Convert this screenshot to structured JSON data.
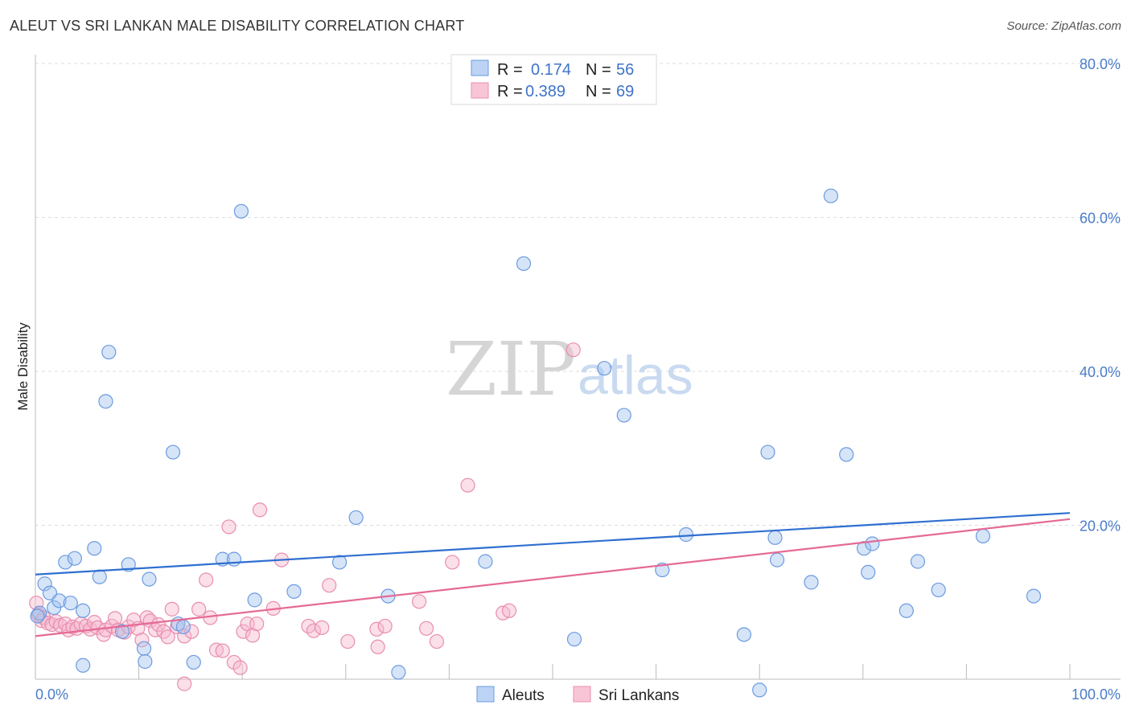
{
  "header": {
    "title": "ALEUT VS SRI LANKAN MALE DISABILITY CORRELATION CHART",
    "source": "Source: ZipAtlas.com"
  },
  "watermark": {
    "zip": "ZIP",
    "atlas": "atlas"
  },
  "legend": {
    "row1": {
      "r_label": "R =",
      "r_value": "0.174",
      "n_label": "N =",
      "n_value": "56"
    },
    "row2": {
      "r_label": "R =",
      "r_value": "0.389",
      "n_label": "N =",
      "n_value": "69"
    }
  },
  "bottom_legend": {
    "a": "Aleuts",
    "b": "Sri Lankans"
  },
  "colors": {
    "aleut": "#4a86d8",
    "srilankan": "#e87aa0",
    "tick": "#4a7cc9"
  },
  "chart_data": {
    "type": "scatter",
    "title": "ALEUT VS SRI LANKAN MALE DISABILITY CORRELATION CHART",
    "ylabel": "Male Disability",
    "xlabel": "",
    "xlim": [
      0,
      100
    ],
    "ylim": [
      0,
      80
    ],
    "x_tick_labels": [
      "0.0%",
      "100.0%"
    ],
    "y_ticks": [
      20,
      40,
      60,
      80
    ],
    "y_tick_labels": [
      "20.0%",
      "40.0%",
      "60.0%",
      "80.0%"
    ],
    "grid": true,
    "legend_position": "top-center",
    "series": [
      {
        "name": "Aleuts",
        "R": 0.174,
        "N": 56,
        "trend": {
          "x": [
            0,
            100
          ],
          "y": [
            13.6,
            21.6
          ]
        },
        "points": [
          [
            0.4,
            8.6
          ],
          [
            0.9,
            12.4
          ],
          [
            1.4,
            11.2
          ],
          [
            1.8,
            9.3
          ],
          [
            2.3,
            10.2
          ],
          [
            2.9,
            15.2
          ],
          [
            3.4,
            9.9
          ],
          [
            3.8,
            15.7
          ],
          [
            4.6,
            8.9
          ],
          [
            4.6,
            1.8
          ],
          [
            5.7,
            17.0
          ],
          [
            6.2,
            13.3
          ],
          [
            7.1,
            42.5
          ],
          [
            6.8,
            36.1
          ],
          [
            8.4,
            6.2
          ],
          [
            9.0,
            14.9
          ],
          [
            10.5,
            4.0
          ],
          [
            10.6,
            2.3
          ],
          [
            11.0,
            13.0
          ],
          [
            13.3,
            29.5
          ],
          [
            13.8,
            7.2
          ],
          [
            14.3,
            6.8
          ],
          [
            15.3,
            2.2
          ],
          [
            18.1,
            15.6
          ],
          [
            19.2,
            15.6
          ],
          [
            19.9,
            60.8
          ],
          [
            21.2,
            10.3
          ],
          [
            25.0,
            11.4
          ],
          [
            29.4,
            15.2
          ],
          [
            31.0,
            21.0
          ],
          [
            34.1,
            10.8
          ],
          [
            35.1,
            0.9
          ],
          [
            43.5,
            15.3
          ],
          [
            47.2,
            54.0
          ],
          [
            52.1,
            5.2
          ],
          [
            55.0,
            40.4
          ],
          [
            56.9,
            34.3
          ],
          [
            60.6,
            14.2
          ],
          [
            62.9,
            18.8
          ],
          [
            68.5,
            5.8
          ],
          [
            70.0,
            -1.4
          ],
          [
            70.8,
            29.5
          ],
          [
            71.5,
            18.4
          ],
          [
            71.7,
            15.5
          ],
          [
            75.0,
            12.6
          ],
          [
            76.9,
            62.8
          ],
          [
            78.4,
            29.2
          ],
          [
            80.1,
            17.0
          ],
          [
            80.5,
            13.9
          ],
          [
            80.9,
            17.6
          ],
          [
            84.2,
            8.9
          ],
          [
            85.3,
            15.3
          ],
          [
            87.3,
            11.6
          ],
          [
            91.6,
            18.6
          ],
          [
            96.5,
            10.8
          ],
          [
            0.2,
            8.2
          ]
        ]
      },
      {
        "name": "Sri Lankans",
        "R": 0.389,
        "N": 69,
        "trend": {
          "x": [
            0,
            100
          ],
          "y": [
            5.6,
            20.8
          ]
        },
        "points": [
          [
            0.1,
            9.9
          ],
          [
            0.3,
            8.4
          ],
          [
            0.6,
            7.6
          ],
          [
            0.8,
            8.0
          ],
          [
            1.2,
            7.3
          ],
          [
            1.6,
            7.1
          ],
          [
            2.0,
            7.5
          ],
          [
            2.4,
            7.0
          ],
          [
            2.9,
            7.2
          ],
          [
            3.2,
            6.4
          ],
          [
            3.6,
            6.8
          ],
          [
            4.0,
            6.6
          ],
          [
            4.4,
            7.2
          ],
          [
            4.9,
            6.9
          ],
          [
            5.3,
            6.5
          ],
          [
            5.7,
            7.4
          ],
          [
            6.0,
            6.7
          ],
          [
            6.6,
            5.8
          ],
          [
            6.8,
            6.4
          ],
          [
            7.4,
            6.9
          ],
          [
            7.7,
            7.9
          ],
          [
            8.0,
            6.4
          ],
          [
            8.6,
            6.1
          ],
          [
            9.0,
            6.8
          ],
          [
            9.5,
            7.7
          ],
          [
            9.9,
            6.6
          ],
          [
            10.3,
            5.1
          ],
          [
            10.8,
            8.0
          ],
          [
            11.1,
            7.6
          ],
          [
            11.6,
            6.4
          ],
          [
            11.9,
            7.1
          ],
          [
            12.4,
            6.2
          ],
          [
            12.8,
            5.5
          ],
          [
            13.2,
            9.1
          ],
          [
            13.7,
            6.8
          ],
          [
            14.4,
            5.6
          ],
          [
            14.4,
            -0.6
          ],
          [
            15.1,
            6.2
          ],
          [
            15.8,
            9.1
          ],
          [
            16.5,
            12.9
          ],
          [
            16.9,
            8.0
          ],
          [
            17.5,
            3.8
          ],
          [
            18.1,
            3.7
          ],
          [
            18.7,
            19.8
          ],
          [
            19.2,
            2.2
          ],
          [
            19.8,
            1.5
          ],
          [
            20.1,
            6.2
          ],
          [
            20.5,
            7.2
          ],
          [
            21.0,
            5.7
          ],
          [
            21.4,
            7.2
          ],
          [
            21.7,
            22.0
          ],
          [
            23.0,
            9.2
          ],
          [
            23.8,
            15.5
          ],
          [
            26.4,
            6.9
          ],
          [
            26.9,
            6.3
          ],
          [
            27.7,
            6.7
          ],
          [
            28.4,
            12.2
          ],
          [
            30.2,
            4.9
          ],
          [
            33.0,
            6.5
          ],
          [
            33.1,
            4.2
          ],
          [
            33.8,
            6.9
          ],
          [
            37.1,
            10.1
          ],
          [
            37.8,
            6.6
          ],
          [
            38.8,
            4.9
          ],
          [
            40.3,
            15.2
          ],
          [
            41.8,
            25.2
          ],
          [
            45.2,
            8.6
          ],
          [
            45.8,
            8.9
          ],
          [
            52.0,
            42.8
          ]
        ]
      }
    ]
  }
}
